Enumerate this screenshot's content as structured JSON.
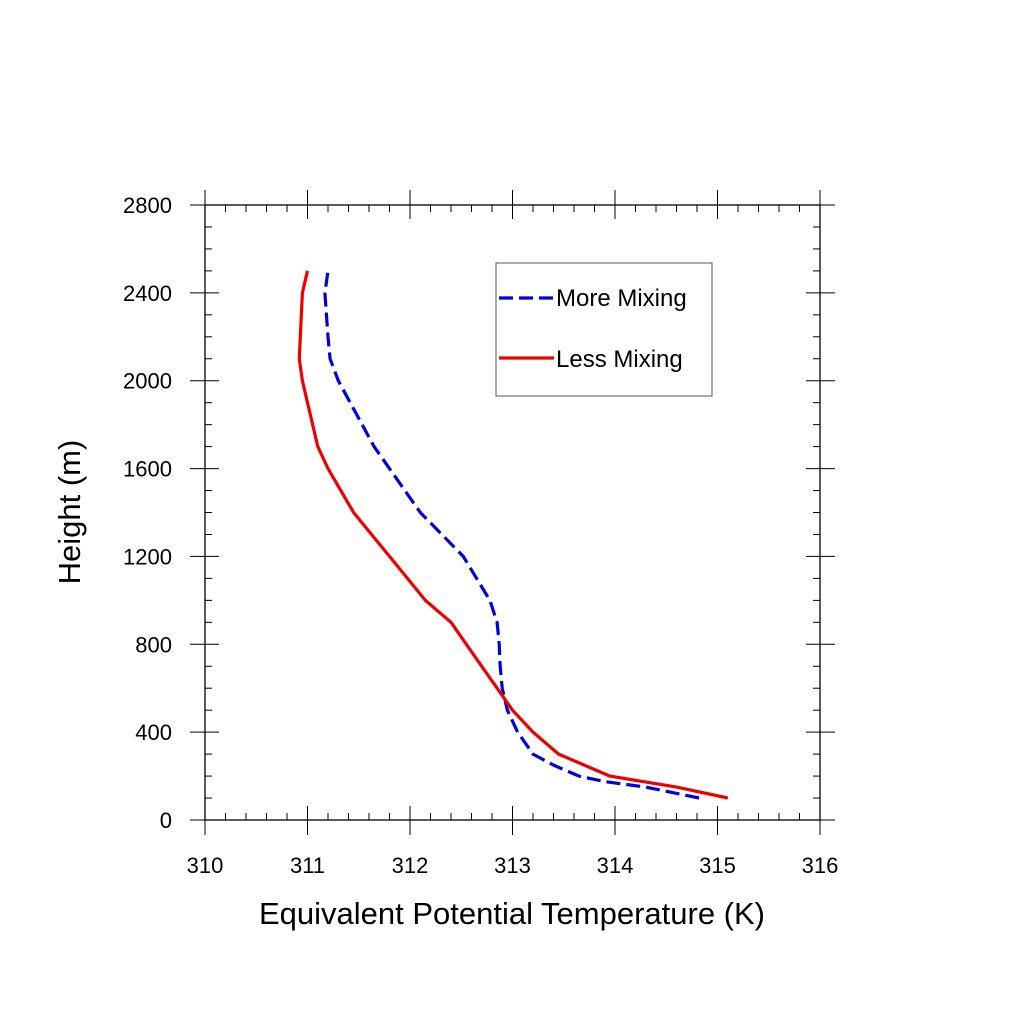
{
  "chart_data": {
    "type": "line",
    "title": "",
    "xlabel": "Equivalent Potential Temperature (K)",
    "ylabel": "Height (m)",
    "xlim": [
      310,
      316
    ],
    "ylim": [
      0,
      2800
    ],
    "x_ticks": [
      "310",
      "311",
      "312",
      "313",
      "314",
      "315",
      "316"
    ],
    "y_ticks": [
      "0",
      "400",
      "800",
      "1200",
      "1600",
      "2000",
      "2400",
      "2800"
    ],
    "grid": false,
    "legend_position": "top-right",
    "series": [
      {
        "name": "More Mixing",
        "color": "#0000dd",
        "style": "dashed",
        "points": [
          [
            314.82,
            100
          ],
          [
            314.3,
            150
          ],
          [
            313.9,
            175
          ],
          [
            313.65,
            200
          ],
          [
            313.4,
            250
          ],
          [
            313.2,
            300
          ],
          [
            313.05,
            400
          ],
          [
            312.95,
            500
          ],
          [
            312.9,
            600
          ],
          [
            312.88,
            700
          ],
          [
            312.87,
            800
          ],
          [
            312.85,
            900
          ],
          [
            312.78,
            1000
          ],
          [
            312.65,
            1100
          ],
          [
            312.52,
            1200
          ],
          [
            312.1,
            1400
          ],
          [
            311.65,
            1700
          ],
          [
            311.3,
            2000
          ],
          [
            311.22,
            2100
          ],
          [
            311.2,
            2200
          ],
          [
            311.17,
            2400
          ],
          [
            311.2,
            2500
          ]
        ]
      },
      {
        "name": "Less Mixing",
        "color": "#ee0000",
        "style": "solid",
        "points": [
          [
            315.1,
            100
          ],
          [
            314.6,
            150
          ],
          [
            313.95,
            200
          ],
          [
            313.45,
            300
          ],
          [
            313.2,
            400
          ],
          [
            313.0,
            500
          ],
          [
            312.85,
            600
          ],
          [
            312.7,
            700
          ],
          [
            312.4,
            900
          ],
          [
            312.15,
            1000
          ],
          [
            311.8,
            1200
          ],
          [
            311.45,
            1400
          ],
          [
            311.2,
            1600
          ],
          [
            311.1,
            1700
          ],
          [
            310.95,
            2000
          ],
          [
            310.92,
            2100
          ],
          [
            310.93,
            2200
          ],
          [
            310.95,
            2400
          ],
          [
            311.0,
            2500
          ]
        ]
      }
    ]
  }
}
